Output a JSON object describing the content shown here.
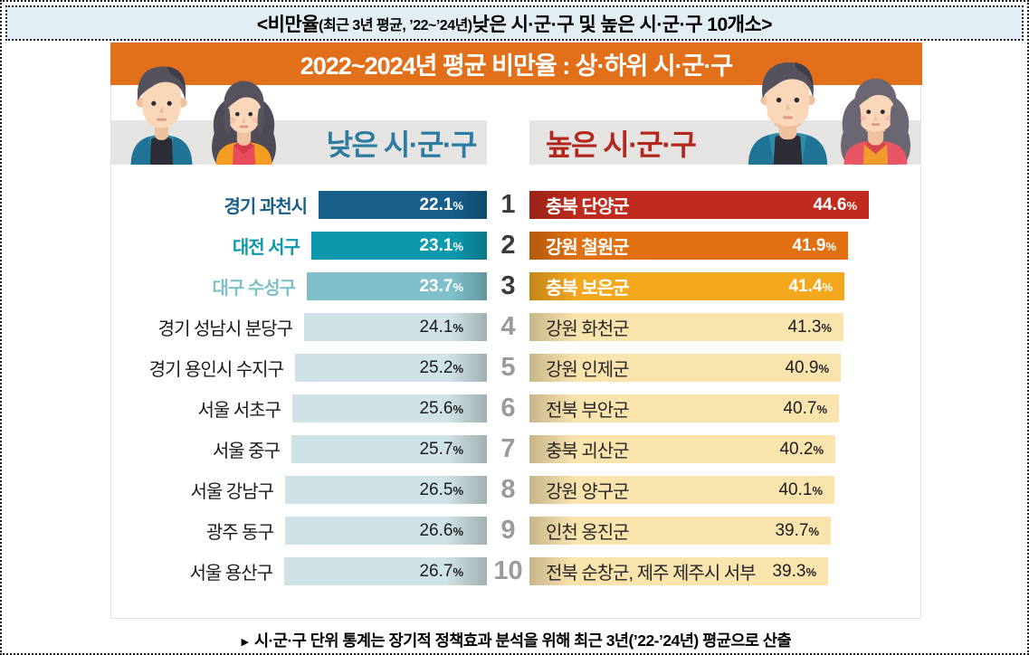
{
  "title": {
    "prefix": "<비만율",
    "paren": "(최근 3년 평균, ’22~’24년)",
    "suffix": " 낮은 시·군·구 및 높은 시·군·구 10개소>"
  },
  "header": {
    "banner": "2022~2024년 평균 비만율 : 상·하위 시·군·구"
  },
  "columns": {
    "low": "낮은 시·군·구",
    "high": "높은 시·군·구"
  },
  "footer": {
    "bullet": "▸",
    "text": "시·군·구 단위 통계는 장기적 정책효과 분석을 위해 최근 3년(’22-’24년) 평균으로 산출"
  },
  "chart_data": {
    "type": "bar",
    "orientation": "horizontal",
    "title": "2022~2024년 평균 비만율 : 상·하위 시·군·구",
    "unit": "%",
    "low_series": {
      "label": "낮은 시·군·구",
      "items": [
        {
          "rank": 1,
          "name": "경기 과천시",
          "value": 22.1
        },
        {
          "rank": 2,
          "name": "대전 서구",
          "value": 23.1
        },
        {
          "rank": 3,
          "name": "대구 수성구",
          "value": 23.7
        },
        {
          "rank": 4,
          "name": "경기 성남시 분당구",
          "value": 24.1
        },
        {
          "rank": 5,
          "name": "경기 용인시 수지구",
          "value": 25.2
        },
        {
          "rank": 6,
          "name": "서울 서초구",
          "value": 25.6
        },
        {
          "rank": 7,
          "name": "서울 중구",
          "value": 25.7
        },
        {
          "rank": 8,
          "name": "서울 강남구",
          "value": 26.5
        },
        {
          "rank": 9,
          "name": "광주 동구",
          "value": 26.6
        },
        {
          "rank": 10,
          "name": "서울 용산구",
          "value": 26.7
        }
      ]
    },
    "high_series": {
      "label": "높은 시·군·구",
      "items": [
        {
          "rank": 1,
          "name": "충북 단양군",
          "value": 44.6
        },
        {
          "rank": 2,
          "name": "강원 철원군",
          "value": 41.9
        },
        {
          "rank": 3,
          "name": "충북 보은군",
          "value": 41.4
        },
        {
          "rank": 4,
          "name": "강원 화천군",
          "value": 41.3
        },
        {
          "rank": 5,
          "name": "강원 인제군",
          "value": 40.9
        },
        {
          "rank": 6,
          "name": "전북 부안군",
          "value": 40.7
        },
        {
          "rank": 7,
          "name": "충북 괴산군",
          "value": 40.2
        },
        {
          "rank": 8,
          "name": "강원 양구군",
          "value": 40.1
        },
        {
          "rank": 9,
          "name": "인천 옹진군",
          "value": 39.7
        },
        {
          "rank": 10,
          "name": "전북 순창군, 제주 제주시 서부",
          "value": 39.3
        }
      ]
    }
  },
  "colors": {
    "title_bg": "#e2eef3",
    "header_orange": "#e2701b",
    "band_gray": "#e5e4e3",
    "low_title_text": "#2c7ba0",
    "high_title_text": "#b3281c",
    "low_bar_top3": [
      "#175e8a",
      "#0c99ad",
      "#7fc0ca"
    ],
    "low_bar_rest": "#cfe2e5",
    "high_bar_top3": [
      "#bf2b1e",
      "#e17110",
      "#f4a81d"
    ],
    "high_bar_rest": "#fae4ae",
    "rank_top3": "#3b3b3b",
    "rank_rest": "#9b9b9b",
    "value_dark": "#1d1d1d",
    "label_dark": "#1a1a1a"
  }
}
